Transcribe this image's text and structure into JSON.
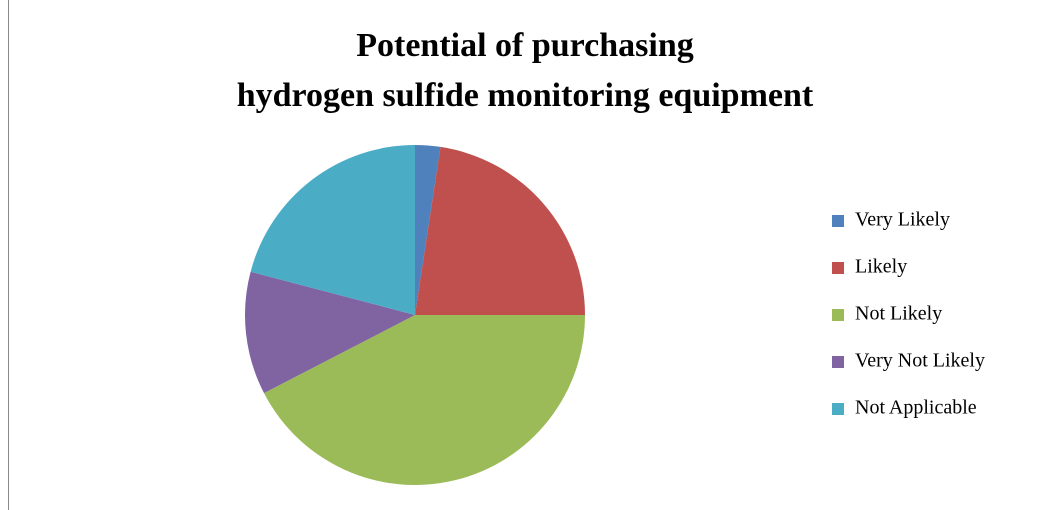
{
  "chart_data": {
    "type": "pie",
    "title": [
      "Potential of purchasing",
      "hydrogen sulfide monitoring equipment"
    ],
    "categories": [
      "Very Likely",
      "Likely",
      "Not Likely",
      "Very Not Likely",
      "Not Applicable"
    ],
    "values": [
      2.4,
      22.6,
      42.4,
      11.7,
      20.9
    ],
    "colors": [
      "#4f81bd",
      "#c0504d",
      "#9bbb59",
      "#8064a2",
      "#4bacc6"
    ],
    "legend": "right"
  }
}
